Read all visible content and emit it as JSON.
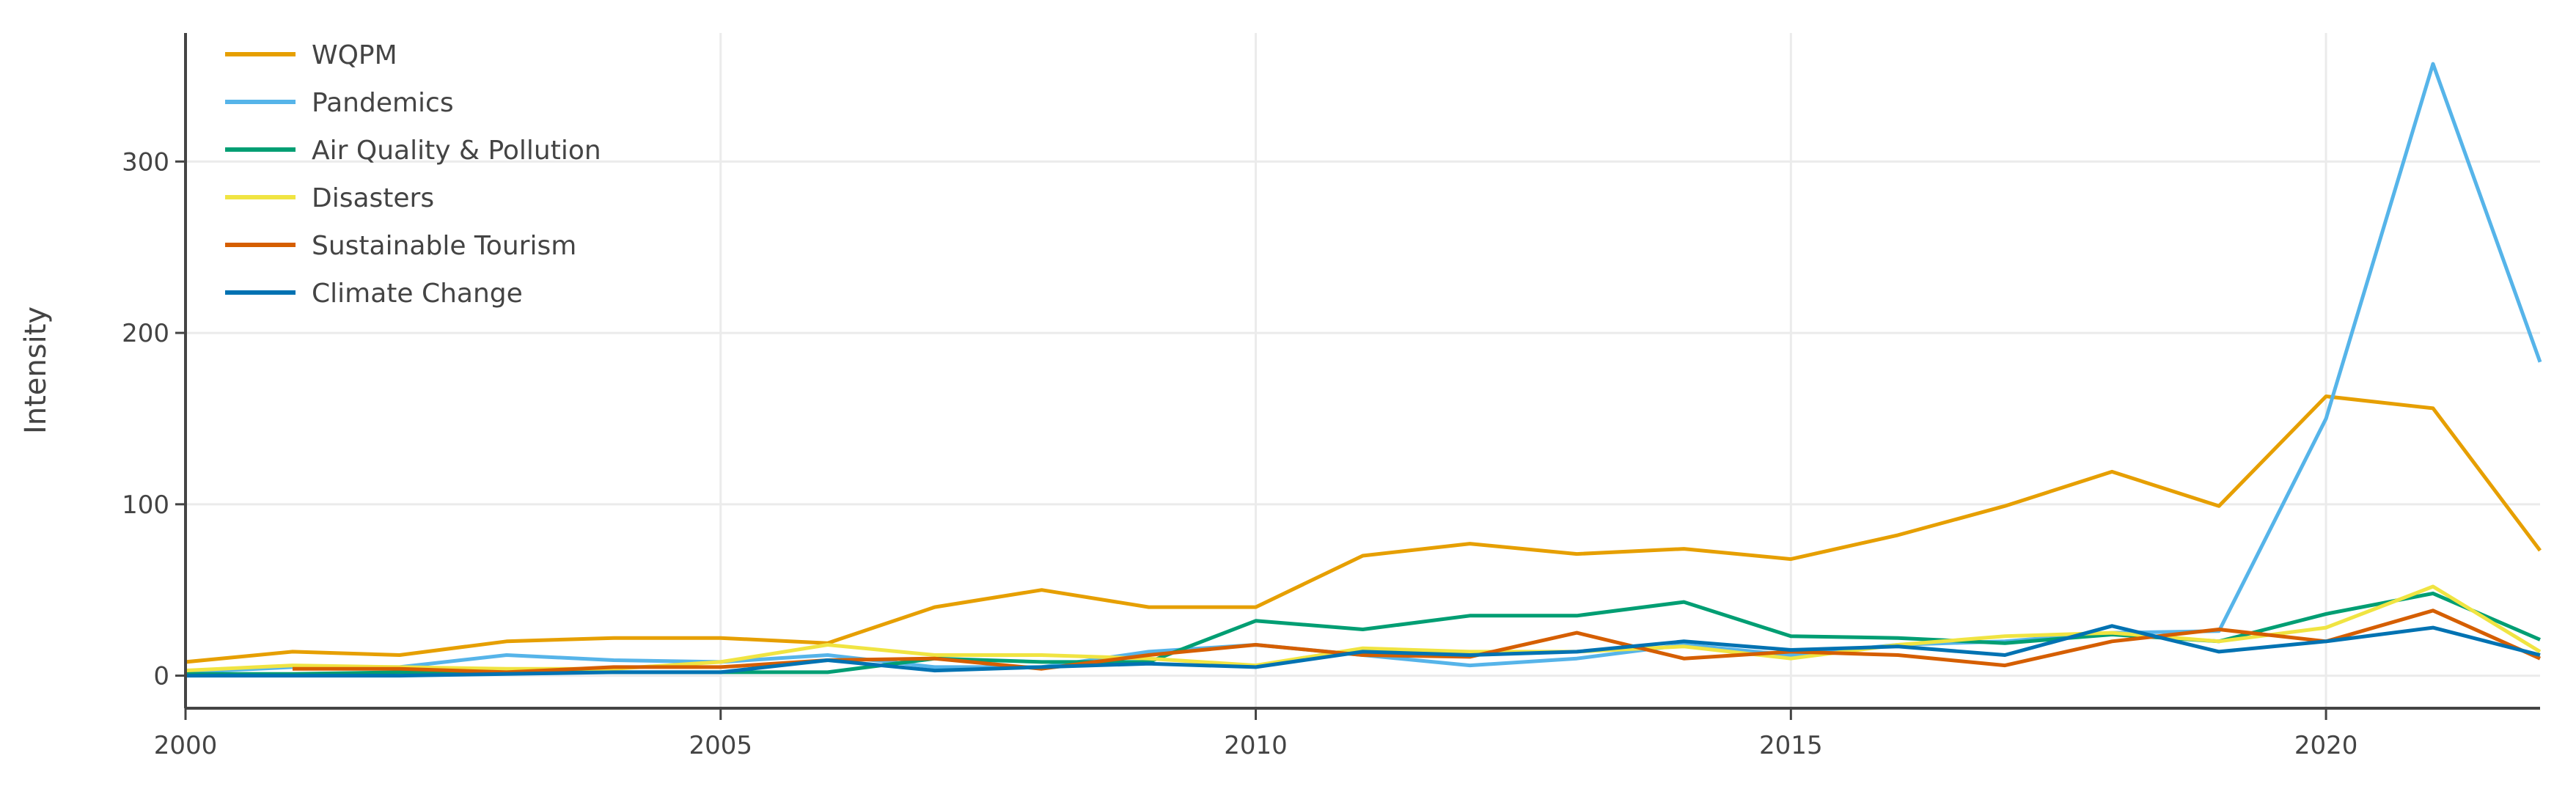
{
  "chart_data": {
    "type": "line",
    "title": "",
    "xlabel": "",
    "ylabel": "Intensity",
    "xlim": [
      2000,
      2022
    ],
    "ylim": [
      -19,
      375
    ],
    "grid": true,
    "legend_position": "top-left",
    "x_ticks": [
      "2000",
      "2005",
      "2010",
      "2015",
      "2020"
    ],
    "y_ticks": [
      "0",
      "100",
      "200",
      "300"
    ],
    "x": [
      2000,
      2001,
      2002,
      2003,
      2004,
      2005,
      2006,
      2007,
      2008,
      2009,
      2010,
      2011,
      2012,
      2013,
      2014,
      2015,
      2016,
      2017,
      2018,
      2019,
      2020,
      2021,
      2022
    ],
    "series": [
      {
        "name": "WQPM",
        "color": "#E69F00",
        "values": [
          8,
          14,
          12,
          20,
          22,
          22,
          19,
          40,
          50,
          40,
          40,
          70,
          77,
          71,
          74,
          68,
          82,
          99,
          119,
          99,
          163,
          156,
          73
        ]
      },
      {
        "name": "Pandemics",
        "color": "#56B4E9",
        "values": [
          2,
          5,
          5,
          12,
          9,
          8,
          12,
          5,
          5,
          14,
          18,
          12,
          6,
          10,
          18,
          12,
          18,
          20,
          25,
          26,
          150,
          357,
          183
        ]
      },
      {
        "name": "Air Quality & Pollution",
        "color": "#009E73",
        "values": [
          1,
          1,
          2,
          2,
          2,
          2,
          2,
          10,
          8,
          8,
          32,
          27,
          35,
          35,
          43,
          23,
          22,
          19,
          24,
          20,
          36,
          48,
          21
        ]
      },
      {
        "name": "Disasters",
        "color": "#F0E442",
        "values": [
          3,
          6,
          5,
          4,
          4,
          8,
          18,
          12,
          12,
          10,
          6,
          16,
          14,
          14,
          17,
          10,
          18,
          23,
          25,
          20,
          28,
          52,
          14
        ]
      },
      {
        "name": "Sustainable Tourism",
        "color": "#D55E00",
        "values": [
          null,
          4,
          4,
          2,
          5,
          5,
          9,
          10,
          4,
          12,
          18,
          12,
          11,
          25,
          10,
          14,
          12,
          6,
          20,
          27,
          20,
          38,
          10
        ]
      },
      {
        "name": "Climate Change",
        "color": "#0072B2",
        "values": [
          0,
          0,
          0,
          1,
          2,
          2,
          9,
          3,
          5,
          7,
          5,
          14,
          12,
          14,
          20,
          15,
          17,
          12,
          29,
          14,
          20,
          28,
          12
        ]
      }
    ]
  }
}
